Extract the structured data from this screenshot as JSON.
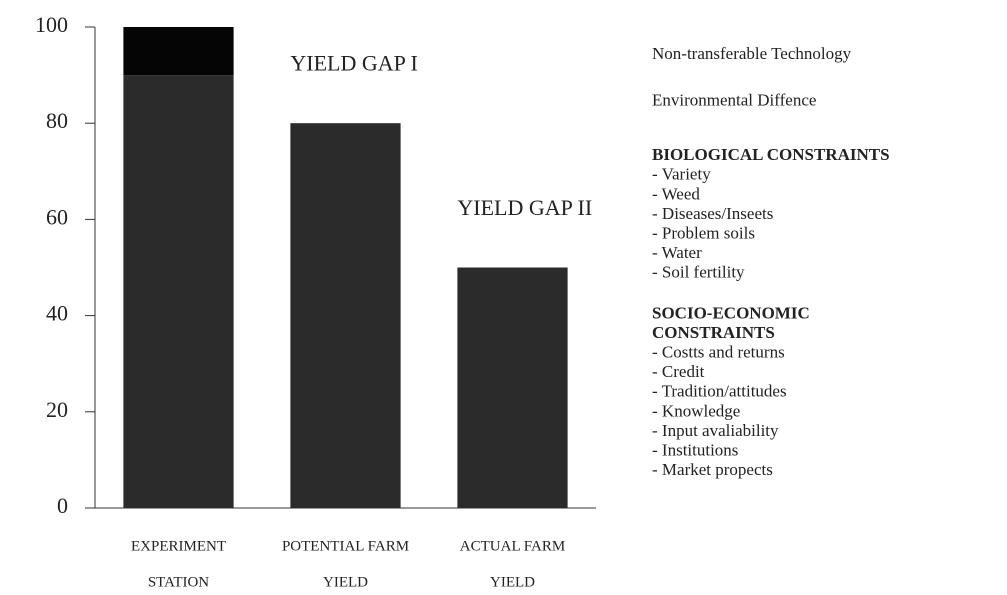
{
  "chart_data": {
    "type": "stacked_bar",
    "categories": [
      [
        "EXPERIMENT",
        "STATION"
      ],
      [
        "POTENTIAL FARM",
        "YIELD"
      ],
      [
        "ACTUAL FARM",
        "YIELD"
      ]
    ],
    "series": [
      {
        "color": "#2b2b2b",
        "values": [
          90,
          80,
          50
        ]
      },
      {
        "color": "#050505",
        "values": [
          10,
          null,
          null
        ]
      }
    ],
    "ylim": [
      0,
      100
    ],
    "yticks": [
      0,
      20,
      40,
      60,
      80,
      100
    ],
    "annotations": [
      {
        "text": "YIELD GAP I",
        "x": 1,
        "y": 92
      },
      {
        "text": "YIELD GAP II",
        "x": 2,
        "y": 62
      }
    ],
    "side_notes": [
      {
        "lines": [
          "Non-transferable Technology"
        ]
      },
      {
        "lines": [
          "Environmental Diffence"
        ]
      },
      {
        "heading": [
          "BIOLOGICAL CONSTRAINTS"
        ],
        "lines": [
          "- Variety",
          "- Weed",
          "- Diseases/Inseets",
          "- Problem soils",
          "- Water",
          "- Soil fertility"
        ]
      },
      {
        "heading": [
          "SOCIO-ECONOMIC",
          "CONSTRAINTS"
        ],
        "lines": [
          "- Costts and returns",
          "- Credit",
          "- Tradition/attitudes",
          "- Knowledge",
          "- Input avaliability",
          "- Institutions",
          "- Market propects"
        ]
      }
    ]
  }
}
